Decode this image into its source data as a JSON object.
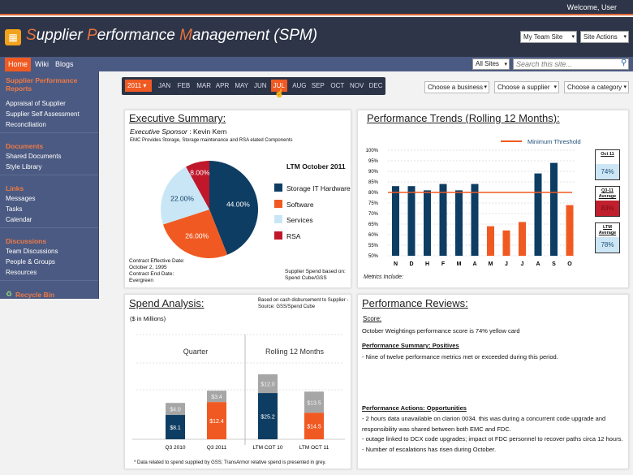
{
  "topbar": {
    "welcome": "Welcome, User"
  },
  "header": {
    "title_parts": [
      "S",
      "upplier ",
      "P",
      "erformance ",
      "M",
      "anagement (SPM)"
    ],
    "my_team_site": "My Team Site",
    "site_actions": "Site Actions"
  },
  "nav": {
    "tabs": [
      "Home",
      "Wiki",
      "Blogs"
    ],
    "all_sites": "All Sites",
    "search_placeholder": "Search this site..."
  },
  "sidebar": {
    "sections": [
      {
        "heading": "Supplier Performance Reports",
        "items": [
          "Appraisal of Supplier",
          "Supplier Self Assessment",
          "Reconciliation"
        ]
      },
      {
        "heading": "Documents",
        "items": [
          "Shared Documents",
          "Style Library"
        ]
      },
      {
        "heading": "Links",
        "items": [
          "Messages",
          "Tasks",
          "Calendar"
        ]
      },
      {
        "heading": "Discussions",
        "items": [
          "Team Discussions",
          "People & Groups",
          "Resources"
        ]
      }
    ],
    "recycle_bin": "Recycle Bin"
  },
  "filters": {
    "year": "2011",
    "months": [
      "JAN",
      "FEB",
      "MAR",
      "APR",
      "MAY",
      "JUN",
      "JUL",
      "AUG",
      "SEP",
      "OCT",
      "NOV",
      "DEC"
    ],
    "selected_month": "JUL",
    "business": "Choose a business",
    "supplier": "Choose a supplier",
    "category": "Choose a category"
  },
  "executive": {
    "title": "Executive Summary:",
    "sponsor_label": "Executive Sponsor",
    "sponsor": " : Kevin Kern",
    "description": "EMC Provides Storage, Storage maintenance and RSA elated Components",
    "contract": [
      "Contract Effective Date:",
      "October 2, 1995",
      "Contract End Date:",
      "Evergreen"
    ],
    "spend_note": [
      "Supplier Spend based on:",
      "Spend Cube/GSS"
    ]
  },
  "trends": {
    "title": "Performance Trends (Rolling 12 Months):",
    "metrics": "Metrics Include:",
    "boxes": [
      {
        "label": "Oct 11",
        "value": "74%",
        "color": "#cde6f5"
      },
      {
        "label": "Q3-11 Average",
        "value": "83%",
        "color": "#c0202e"
      },
      {
        "label": "LTM Average",
        "value": "78%",
        "color": "#cde6f5"
      }
    ]
  },
  "spend": {
    "title": "Spend Analysis:",
    "units": "($ in Millions)",
    "source": "Based on cash disbursement to Supplier -  Source: GSS/Spend Cube",
    "footnote": "* Data related to spend supplied by GSS; TransArmor relative spend is presented in grey."
  },
  "reviews": {
    "title": "Performance Reviews:",
    "score_h": "Score:",
    "score": "October Weightings performance score is 74% yellow card",
    "pos_h": "Performance Summary: Positives",
    "pos": [
      "- Nine of twelve performance metrics met or exceeded during this period."
    ],
    "opp_h": "Performance Actions: Opportunities",
    "opp": [
      "- 2 hours data unavailable on clarion 0034. this was during a concurrent code upgrade and responsibility was shared between both EMC and FDC.",
      "- outage linked to DCX code upgrades; impact ot FDC personnel to recover paths circa 12 hours.",
      "- Number of escalations has risen during October."
    ]
  },
  "chart_data": [
    {
      "type": "pie",
      "title": "LTM October 2011",
      "categories": [
        "Storage IT Hardware",
        "Software",
        "Services",
        "RSA"
      ],
      "values": [
        44,
        26,
        22,
        8
      ],
      "labels": [
        "44.00%",
        "26.00%",
        "22.00%",
        "8.00%"
      ],
      "colors": [
        "#0e3d63",
        "#f05a22",
        "#c9e6f6",
        "#c0172b"
      ]
    },
    {
      "type": "bar",
      "title": "Performance Trends (Rolling 12 Months)",
      "categories": [
        "N",
        "D",
        "H",
        "F",
        "M",
        "A",
        "M",
        "J",
        "J",
        "A",
        "S",
        "O"
      ],
      "values": [
        83,
        83,
        81,
        84,
        81,
        84,
        64,
        62,
        66,
        89,
        94,
        74
      ],
      "threshold": 80,
      "threshold_label": "Minimum Threshold",
      "ylim": [
        50,
        100
      ],
      "yticks": [
        "50%",
        "55%",
        "60%",
        "65%",
        "70%",
        "75%",
        "80%",
        "85%",
        "90%",
        "95%",
        "100%"
      ],
      "colors": {
        "above": "#0e3d63",
        "below": "#f05a22",
        "threshold": "#f05a22"
      }
    },
    {
      "type": "bar",
      "stacked": true,
      "groups": [
        {
          "name": "Quarter",
          "categories": [
            "Q3 2010",
            "Q3 2011"
          ]
        },
        {
          "name": "Rolling 12 Months",
          "categories": [
            "LTM COT 10",
            "LTM OCT 11"
          ]
        }
      ],
      "series": [
        {
          "name": "GSS",
          "values": [
            8.1,
            12.4,
            25.2,
            14.5
          ],
          "labels": [
            "$8.1",
            "$12.4",
            "$25.2",
            "$14.5"
          ],
          "colors": [
            "#0e3d63",
            "#f05a22",
            "#0e3d63",
            "#f05a22"
          ]
        },
        {
          "name": "TransArmor",
          "values": [
            4.0,
            3.4,
            12.0,
            13.5
          ],
          "labels": [
            "$4.0",
            "$3.4",
            "$12.0",
            "$13.5"
          ],
          "color": "#a6a6a6"
        }
      ]
    }
  ]
}
